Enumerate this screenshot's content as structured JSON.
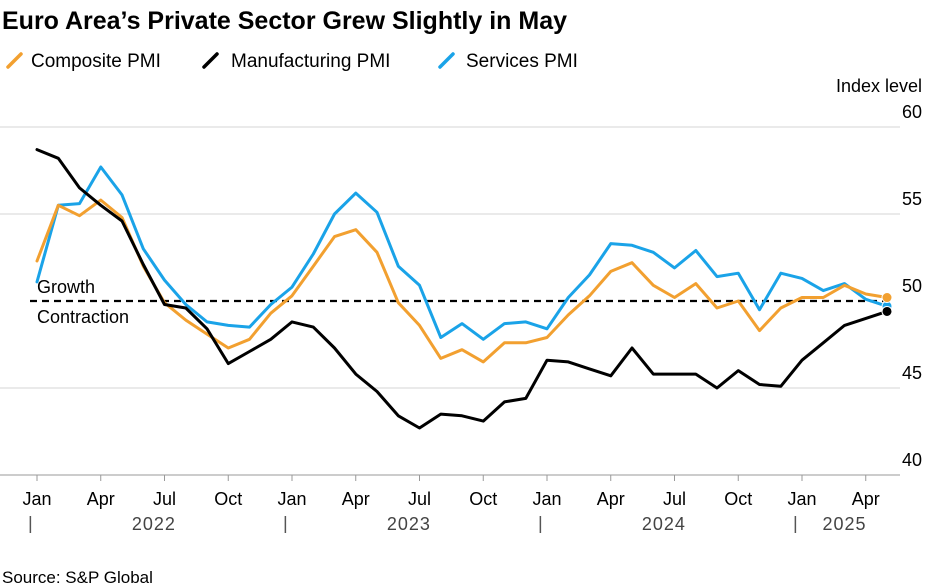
{
  "title": "Euro Area’s Private Sector Grew Slightly in May",
  "source": "Source: S&P Global",
  "chart_data": {
    "type": "line",
    "title": "Euro Area’s Private Sector Grew Slightly in May",
    "ylabel": "Index level",
    "xlabel": "",
    "ylim": [
      40,
      60
    ],
    "yticks": [
      40,
      45,
      50,
      55,
      60
    ],
    "threshold": 50,
    "annotations": {
      "above": "Growth",
      "below": "Contraction"
    },
    "legend_position": "top-left",
    "x": [
      "2022-01",
      "2022-02",
      "2022-03",
      "2022-04",
      "2022-05",
      "2022-06",
      "2022-07",
      "2022-08",
      "2022-09",
      "2022-10",
      "2022-11",
      "2022-12",
      "2023-01",
      "2023-02",
      "2023-03",
      "2023-04",
      "2023-05",
      "2023-06",
      "2023-07",
      "2023-08",
      "2023-09",
      "2023-10",
      "2023-11",
      "2023-12",
      "2024-01",
      "2024-02",
      "2024-03",
      "2024-04",
      "2024-05",
      "2024-06",
      "2024-07",
      "2024-08",
      "2024-09",
      "2024-10",
      "2024-11",
      "2024-12",
      "2025-01",
      "2025-02",
      "2025-03",
      "2025-04",
      "2025-05"
    ],
    "x_tick_labels": [
      {
        "label": "Jan",
        "x": "2022-01"
      },
      {
        "label": "Apr",
        "x": "2022-04"
      },
      {
        "label": "Jul",
        "x": "2022-07"
      },
      {
        "label": "Oct",
        "x": "2022-10"
      },
      {
        "label": "Jan",
        "x": "2023-01"
      },
      {
        "label": "Apr",
        "x": "2023-04"
      },
      {
        "label": "Jul",
        "x": "2023-07"
      },
      {
        "label": "Oct",
        "x": "2023-10"
      },
      {
        "label": "Jan",
        "x": "2024-01"
      },
      {
        "label": "Apr",
        "x": "2024-04"
      },
      {
        "label": "Jul",
        "x": "2024-07"
      },
      {
        "label": "Oct",
        "x": "2024-10"
      },
      {
        "label": "Jan",
        "x": "2025-01"
      },
      {
        "label": "Apr",
        "x": "2025-04"
      }
    ],
    "years": [
      {
        "label": "2022",
        "from": "2022-01",
        "to": "2022-12"
      },
      {
        "label": "2023",
        "from": "2023-01",
        "to": "2023-12"
      },
      {
        "label": "2024",
        "from": "2024-01",
        "to": "2024-12"
      },
      {
        "label": "2025",
        "from": "2025-01",
        "to": "2025-05"
      }
    ],
    "series": [
      {
        "name": "Composite PMI",
        "color": "#f2a030",
        "values": [
          52.3,
          55.5,
          54.9,
          55.8,
          54.8,
          52.0,
          49.9,
          48.9,
          48.1,
          47.3,
          47.8,
          49.3,
          50.3,
          52.0,
          53.7,
          54.1,
          52.8,
          49.9,
          48.6,
          46.7,
          47.2,
          46.5,
          47.6,
          47.6,
          47.9,
          49.2,
          50.3,
          51.7,
          52.2,
          50.9,
          50.2,
          51.0,
          49.6,
          50.0,
          48.3,
          49.6,
          50.2,
          50.2,
          50.9,
          50.4,
          50.2
        ]
      },
      {
        "name": "Manufacturing PMI",
        "color": "#000000",
        "values": [
          58.7,
          58.2,
          56.5,
          55.5,
          54.6,
          52.1,
          49.8,
          49.6,
          48.4,
          46.4,
          47.1,
          47.8,
          48.8,
          48.5,
          47.3,
          45.8,
          44.8,
          43.4,
          42.7,
          43.5,
          43.4,
          43.1,
          44.2,
          44.4,
          46.6,
          46.5,
          46.1,
          45.7,
          47.3,
          45.8,
          45.8,
          45.8,
          45.0,
          46.0,
          45.2,
          45.1,
          46.6,
          47.6,
          48.6,
          49.0,
          49.4
        ]
      },
      {
        "name": "Services PMI",
        "color": "#1aa3e8",
        "values": [
          51.1,
          55.5,
          55.6,
          57.7,
          56.1,
          53.0,
          51.2,
          49.8,
          48.8,
          48.6,
          48.5,
          49.8,
          50.8,
          52.7,
          55.0,
          56.2,
          55.1,
          52.0,
          50.9,
          47.9,
          48.7,
          47.8,
          48.7,
          48.8,
          48.4,
          50.2,
          51.5,
          53.3,
          53.2,
          52.8,
          51.9,
          52.9,
          51.4,
          51.6,
          49.5,
          51.6,
          51.3,
          50.6,
          51.0,
          50.1,
          49.7
        ]
      }
    ]
  }
}
